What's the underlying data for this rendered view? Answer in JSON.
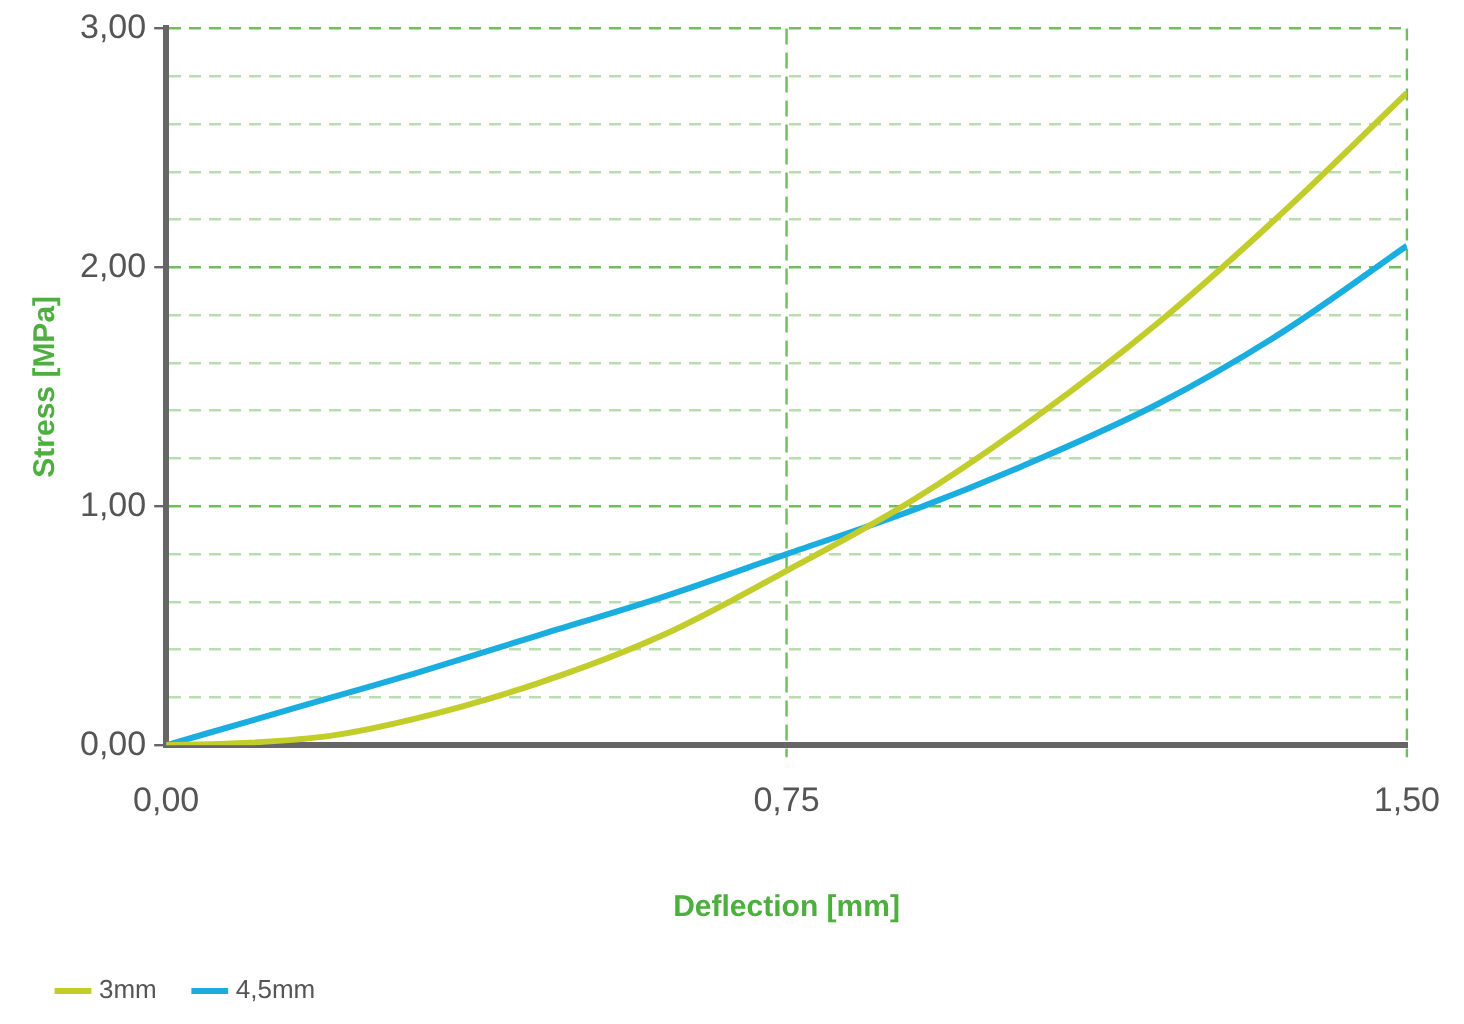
{
  "chart_data": {
    "type": "line",
    "xlabel": "Deflection [mm]",
    "ylabel": "Stress [MPa]",
    "x": [
      0,
      0.1,
      0.2,
      0.3,
      0.45,
      0.6,
      0.75,
      0.9,
      1.05,
      1.2,
      1.35,
      1.5
    ],
    "series": [
      {
        "name": "3mm",
        "color": "#c2cc2a",
        "values": [
          0,
          0.01,
          0.04,
          0.11,
          0.26,
          0.46,
          0.73,
          1.02,
          1.37,
          1.77,
          2.23,
          2.73
        ]
      },
      {
        "name": "4,5mm",
        "color": "#1aaee0",
        "values": [
          0,
          0.1,
          0.2,
          0.3,
          0.46,
          0.62,
          0.8,
          0.98,
          1.19,
          1.43,
          1.73,
          2.09
        ]
      }
    ],
    "xlim": [
      0,
      1.5
    ],
    "xticks": [
      {
        "value": 0,
        "label": "0,00"
      },
      {
        "value": 0.75,
        "label": "0,75"
      },
      {
        "value": 1.5,
        "label": "1,50"
      }
    ],
    "ylim": [
      0,
      3
    ],
    "yticks": [
      {
        "value": 0,
        "label": "0,00"
      },
      {
        "value": 0.2,
        "label": null
      },
      {
        "value": 0.4,
        "label": null
      },
      {
        "value": 0.6,
        "label": null
      },
      {
        "value": 0.8,
        "label": null
      },
      {
        "value": 1,
        "label": "1,00"
      },
      {
        "value": 1.2,
        "label": null
      },
      {
        "value": 1.4,
        "label": null
      },
      {
        "value": 1.6,
        "label": null
      },
      {
        "value": 1.8,
        "label": null
      },
      {
        "value": 2,
        "label": "2,00"
      },
      {
        "value": 2.2,
        "label": null
      },
      {
        "value": 2.4,
        "label": null
      },
      {
        "value": 2.6,
        "label": null
      },
      {
        "value": 2.8,
        "label": null
      },
      {
        "value": 3,
        "label": "3,00"
      }
    ],
    "ref_lines": [
      {
        "axis": "x",
        "value": 0.75,
        "color": "#6cbf5a",
        "line_style": "dashed"
      }
    ],
    "grid": "y",
    "legend": "bottom left",
    "marker": "none",
    "line_style": "solid"
  }
}
